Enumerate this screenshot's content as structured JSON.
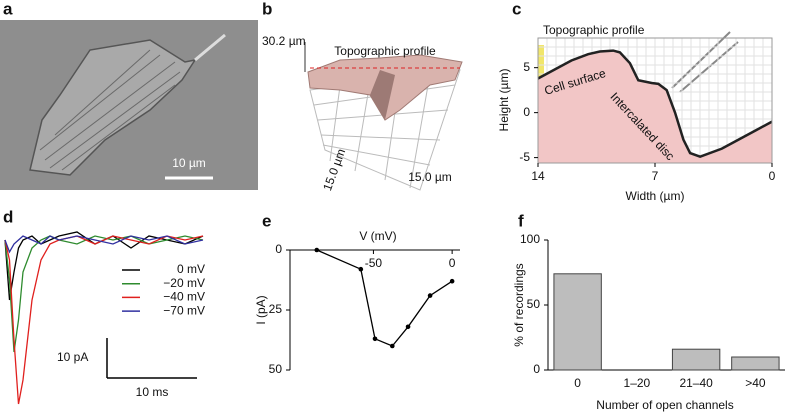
{
  "figure": [
    {
      "panel": "a",
      "scale_bar": "10 µm"
    },
    {
      "panel": "b",
      "height": "30.2 µm",
      "profile_label": "Topographic profile",
      "width_labels": [
        "15.0 µm",
        "15.0 µm"
      ]
    }
  ],
  "chart_data": [
    {
      "panel": "c",
      "type": "area",
      "title": "Topographic profile",
      "x": [
        14,
        13,
        12,
        11,
        10.3,
        9.5,
        9.1,
        8.5,
        8.0,
        7.2,
        6.8,
        6.3,
        5.8,
        5.3,
        4.9,
        4.3,
        3,
        2,
        1,
        0
      ],
      "values": [
        3.8,
        4.8,
        5.8,
        6.5,
        6.8,
        6.9,
        6.7,
        5.5,
        3.6,
        3.3,
        3.2,
        2.5,
        0,
        -3,
        -4.5,
        -4.9,
        -4,
        -3,
        -2,
        -1
      ],
      "color": "#f2c6c6",
      "line_color": "#222",
      "xlim": [
        14,
        0
      ],
      "ylim": [
        -5.6,
        8.3
      ],
      "xticks": [
        14,
        7,
        0
      ],
      "yticks": [
        -5,
        0,
        5
      ],
      "xlabel": "Width (µm)",
      "ylabel": "Height (µm)",
      "annotations": [
        "Cell surface",
        "Intercalated disc"
      ],
      "grid": true
    },
    {
      "panel": "d",
      "type": "trace",
      "x": [
        0,
        0.5,
        1,
        1.5,
        2,
        3,
        4,
        5,
        6,
        8,
        10,
        12,
        14,
        16,
        18,
        20,
        22
      ],
      "series": [
        {
          "name": "0 mV",
          "color": "#000000",
          "values": [
            0,
            -15,
            -8,
            -2,
            0,
            1,
            -1,
            0,
            1,
            2,
            -1,
            1,
            -2,
            1,
            0,
            -1,
            1
          ]
        },
        {
          "name": "−20 mV",
          "color": "#2e8b2e",
          "values": [
            0,
            -10,
            -28,
            -20,
            -8,
            -2,
            0,
            1,
            0,
            -1,
            1,
            0,
            1,
            -1,
            0,
            1,
            0
          ]
        },
        {
          "name": "−40 mV",
          "color": "#e0201e",
          "values": [
            0,
            -5,
            -25,
            -41,
            -35,
            -15,
            -5,
            -1,
            0,
            1,
            -1,
            1,
            0,
            -1,
            1,
            0,
            1
          ]
        },
        {
          "name": "−70 mV",
          "color": "#3030a0",
          "values": [
            0,
            -3,
            -1,
            0,
            1,
            0,
            -1,
            1,
            0,
            1,
            0,
            -1,
            1,
            0,
            1,
            -1,
            0
          ]
        }
      ],
      "scale_bar": {
        "y": 10,
        "y_label": "10 pA",
        "x": 10,
        "x_label": "10 ms"
      }
    },
    {
      "panel": "e",
      "type": "line",
      "x": [
        -86,
        -58,
        -49,
        -38,
        -28,
        -14,
        0
      ],
      "values": [
        0,
        8,
        37,
        40,
        32,
        19,
        13
      ],
      "color": "#000000",
      "xlim": [
        -103,
        5
      ],
      "ylim": [
        50,
        0
      ],
      "xticks": [
        -50,
        0
      ],
      "yticks": [
        0,
        25,
        50
      ],
      "xlabel": "V (mV)",
      "ylabel": "I (pA)"
    },
    {
      "panel": "f",
      "type": "bar",
      "categories": [
        "0",
        "1–20",
        "21–40",
        ">40"
      ],
      "values": [
        74,
        0,
        16,
        10
      ],
      "color": "#bdbdbd",
      "ylim": [
        0,
        100
      ],
      "yticks": [
        0,
        50,
        100
      ],
      "xlabel": "Number of open channels",
      "ylabel": "% of recordings"
    }
  ]
}
